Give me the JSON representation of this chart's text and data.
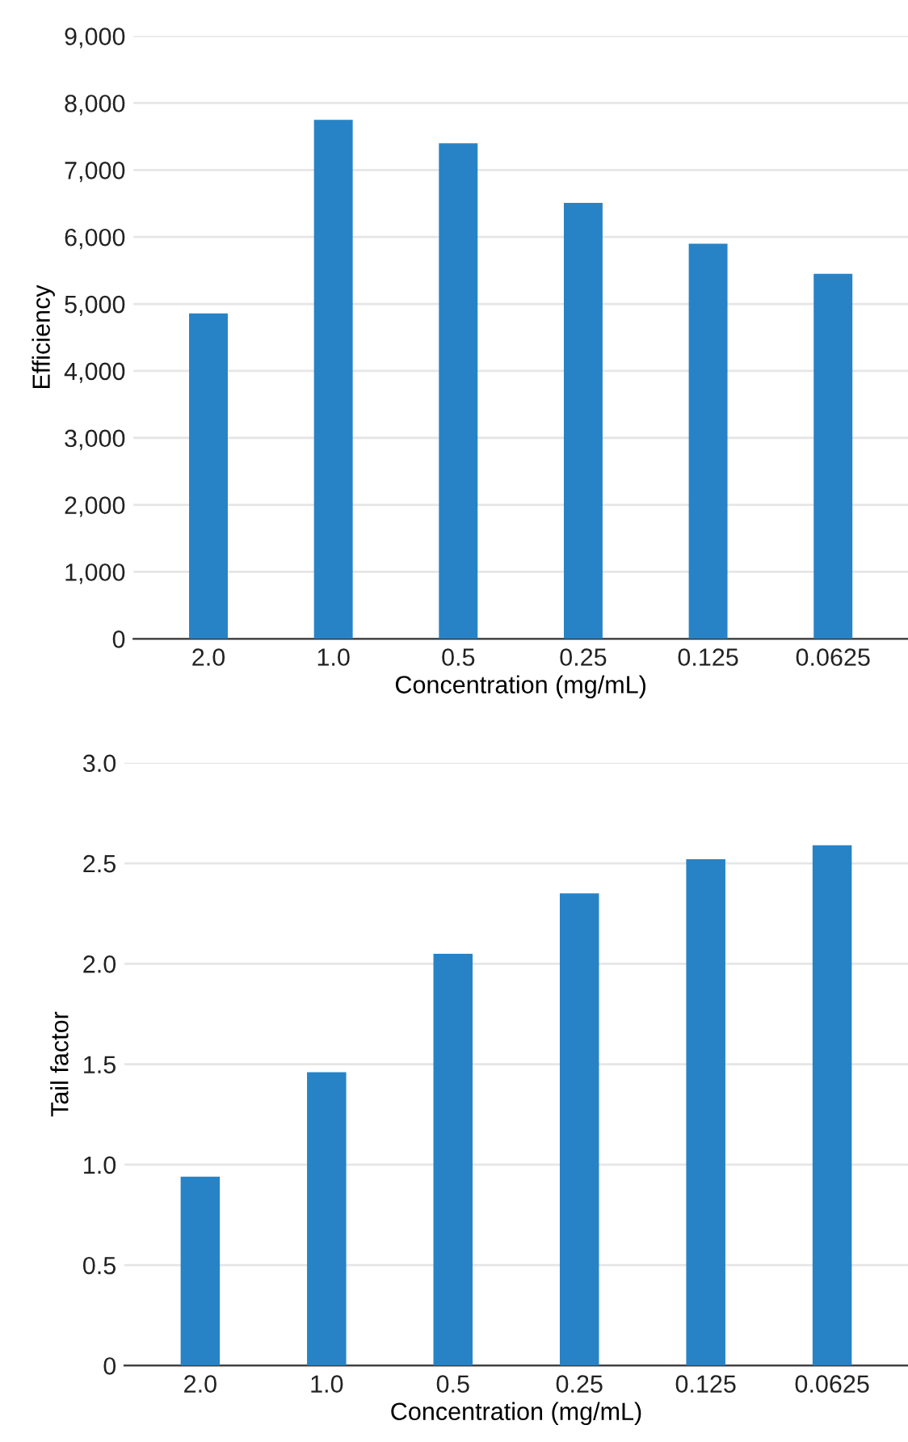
{
  "chart_data": [
    {
      "type": "bar",
      "xlabel": "Concentration (mg/mL)",
      "ylabel": "Efficiency",
      "categories": [
        "2.0",
        "1.0",
        "0.5",
        "0.25",
        "0.125",
        "0.0625"
      ],
      "values": [
        4860,
        7750,
        7400,
        6510,
        5900,
        5450
      ],
      "color": "#2783c6",
      "ylim": [
        0,
        9000
      ],
      "yticks": [
        {
          "value": 0,
          "label": "0"
        },
        {
          "value": 1000,
          "label": "1,000"
        },
        {
          "value": 2000,
          "label": "2,000"
        },
        {
          "value": 3000,
          "label": "3,000"
        },
        {
          "value": 4000,
          "label": "4,000"
        },
        {
          "value": 5000,
          "label": "5,000"
        },
        {
          "value": 6000,
          "label": "6,000"
        },
        {
          "value": 7000,
          "label": "7,000"
        },
        {
          "value": 8000,
          "label": "8,000"
        },
        {
          "value": 9000,
          "label": "9,000"
        }
      ],
      "grid": "y"
    },
    {
      "type": "bar",
      "xlabel": "Concentration (mg/mL)",
      "ylabel": "Tail factor",
      "categories": [
        "2.0",
        "1.0",
        "0.5",
        "0.25",
        "0.125",
        "0.0625"
      ],
      "values": [
        0.94,
        1.46,
        2.05,
        2.35,
        2.52,
        2.59
      ],
      "color": "#2783c6",
      "ylim": [
        0,
        3.0
      ],
      "yticks": [
        {
          "value": 0,
          "label": "0"
        },
        {
          "value": 0.5,
          "label": "0.5"
        },
        {
          "value": 1.0,
          "label": "1.0"
        },
        {
          "value": 1.5,
          "label": "1.5"
        },
        {
          "value": 2.0,
          "label": "2.0"
        },
        {
          "value": 2.5,
          "label": "2.5"
        },
        {
          "value": 3.0,
          "label": "3.0"
        }
      ],
      "grid": "y"
    }
  ]
}
